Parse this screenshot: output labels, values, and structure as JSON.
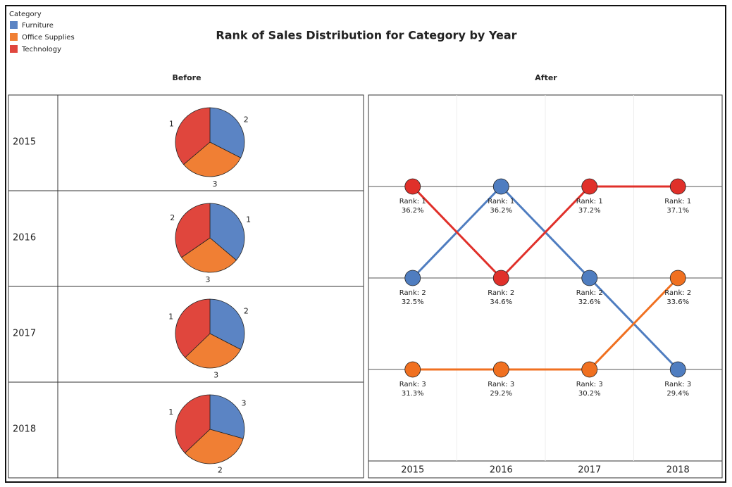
{
  "title": "Rank of Sales Distribution for Category by Year",
  "legend_title": "Category",
  "chart_data": [
    {
      "type": "pie",
      "title": "Before",
      "rows": [
        "2015",
        "2016",
        "2017",
        "2018"
      ],
      "categories": [
        "Furniture",
        "Office Supplies",
        "Technology"
      ],
      "colors": [
        "#5b84c4",
        "#f07f34",
        "#e0463d"
      ],
      "pies": [
        {
          "values": [
            32.5,
            31.3,
            36.2
          ],
          "ranks": [
            2,
            3,
            1
          ]
        },
        {
          "values": [
            36.2,
            29.2,
            34.6
          ],
          "ranks": [
            1,
            3,
            2
          ]
        },
        {
          "values": [
            32.6,
            30.2,
            37.2
          ],
          "ranks": [
            2,
            3,
            1
          ]
        },
        {
          "values": [
            29.4,
            33.6,
            37.1
          ],
          "ranks": [
            3,
            2,
            1
          ]
        }
      ]
    },
    {
      "type": "line",
      "title": "After",
      "categories": [
        "2015",
        "2016",
        "2017",
        "2018"
      ],
      "ylim": [
        4,
        0
      ],
      "yticks": [
        1,
        2,
        3
      ],
      "grid": true,
      "series": [
        {
          "color": "#4f7dc0",
          "values": [
            2,
            1,
            2,
            3
          ],
          "value_labels": [
            "Rank: 2",
            "Rank: 1",
            "Rank: 2",
            "Rank: 3"
          ],
          "share_labels": [
            "32.5%",
            "36.2%",
            "32.6%",
            "29.4%"
          ]
        },
        {
          "color": "#f07020",
          "values": [
            3,
            3,
            3,
            2
          ],
          "value_labels": [
            "Rank: 3",
            "Rank: 3",
            "Rank: 3",
            "Rank: 2"
          ],
          "share_labels": [
            "31.3%",
            "29.2%",
            "30.2%",
            "33.6%"
          ]
        },
        {
          "color": "#e0302a",
          "values": [
            1,
            2,
            1,
            1
          ],
          "value_labels": [
            "Rank: 1",
            "Rank: 2",
            "Rank: 1",
            "Rank: 1"
          ],
          "share_labels": [
            "36.2%",
            "34.6%",
            "37.2%",
            "37.1%"
          ]
        }
      ]
    }
  ]
}
